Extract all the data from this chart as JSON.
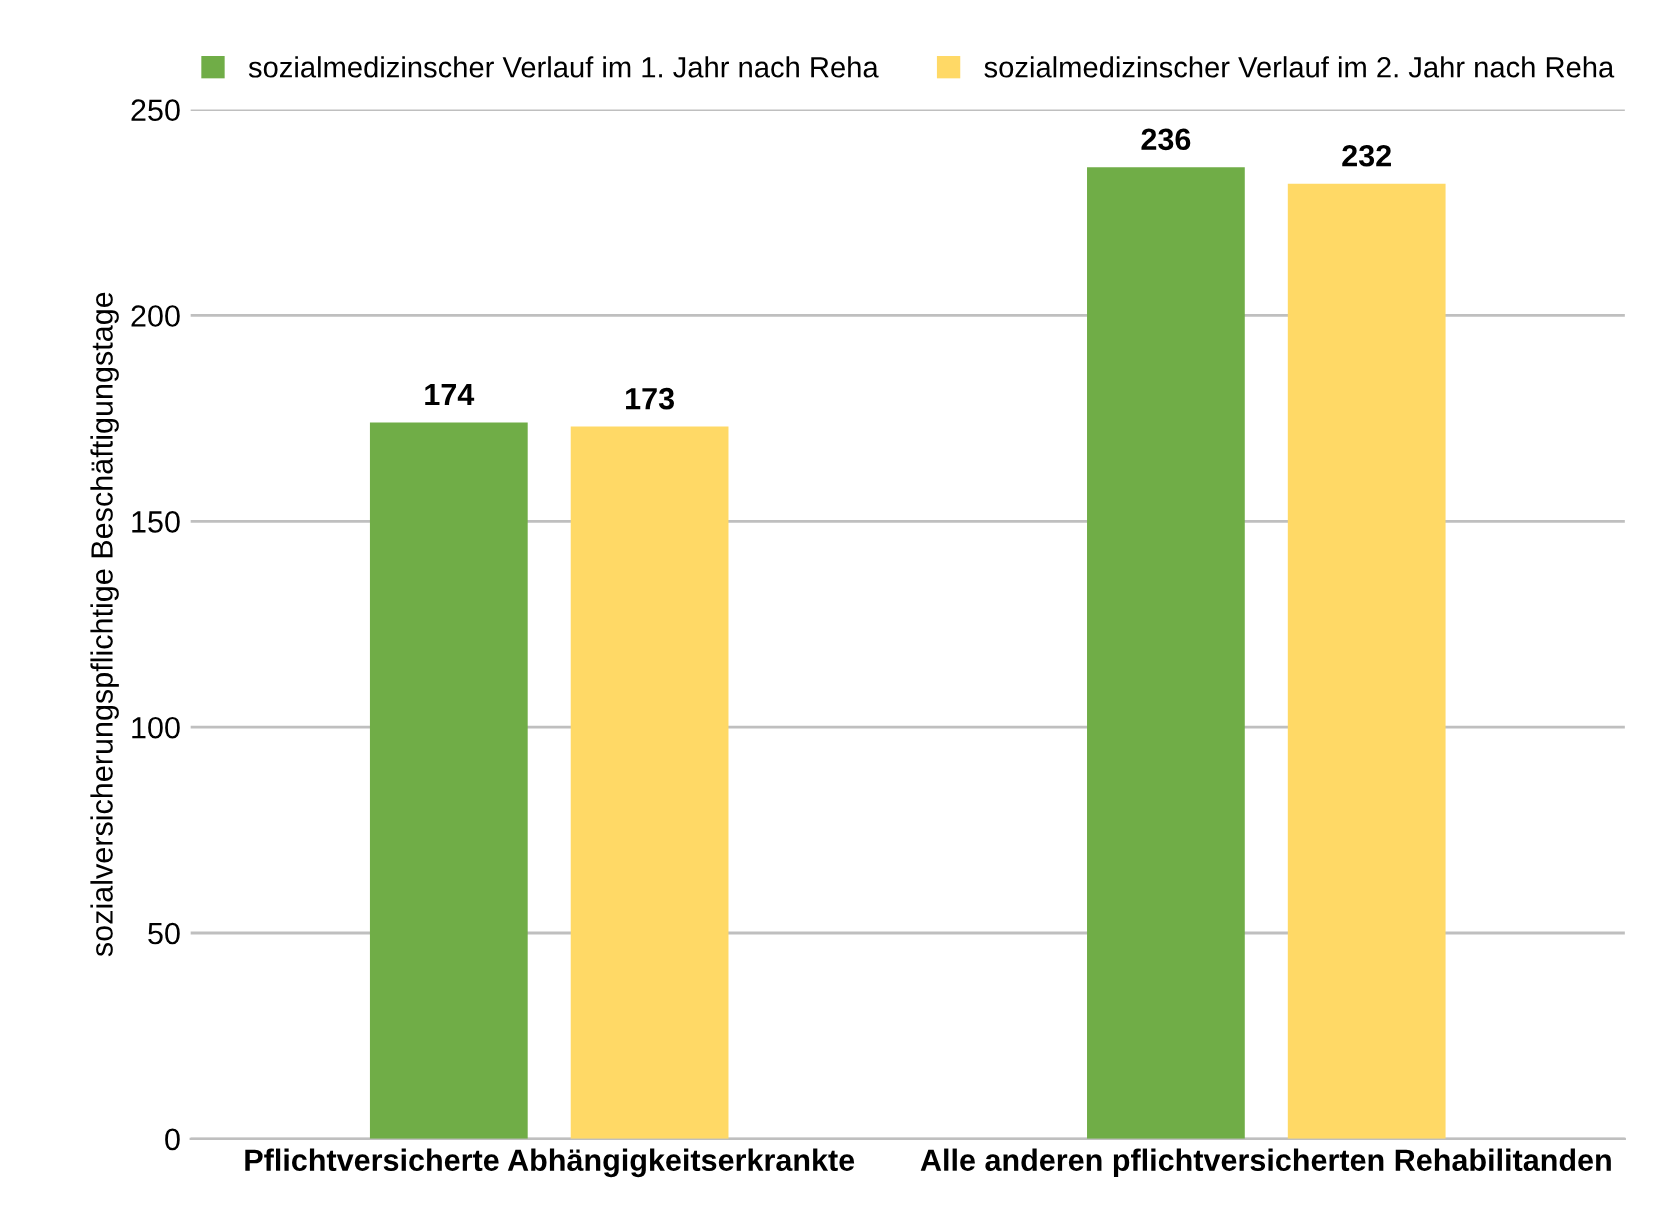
{
  "chart_data": {
    "type": "bar",
    "ylabel": "sozialversicherungspflichtige Beschäftigungstage",
    "categories": [
      "Pflichtversicherte Abhängigkeitserkrankte",
      "Alle anderen pflichtversicherten Rehabilitanden"
    ],
    "series": [
      {
        "name": "sozialmedizinscher Verlauf im 1. Jahr nach Reha",
        "color": "#70ad47",
        "values": [
          174,
          236
        ]
      },
      {
        "name": "sozialmedizinscher Verlauf im 2. Jahr nach Reha",
        "color": "#ffd966",
        "values": [
          173,
          232
        ]
      }
    ],
    "ylim": [
      0,
      250
    ],
    "yticks": [
      0,
      50,
      100,
      150,
      200,
      250
    ],
    "grid": "y",
    "legend": "top",
    "data_labels": true
  }
}
